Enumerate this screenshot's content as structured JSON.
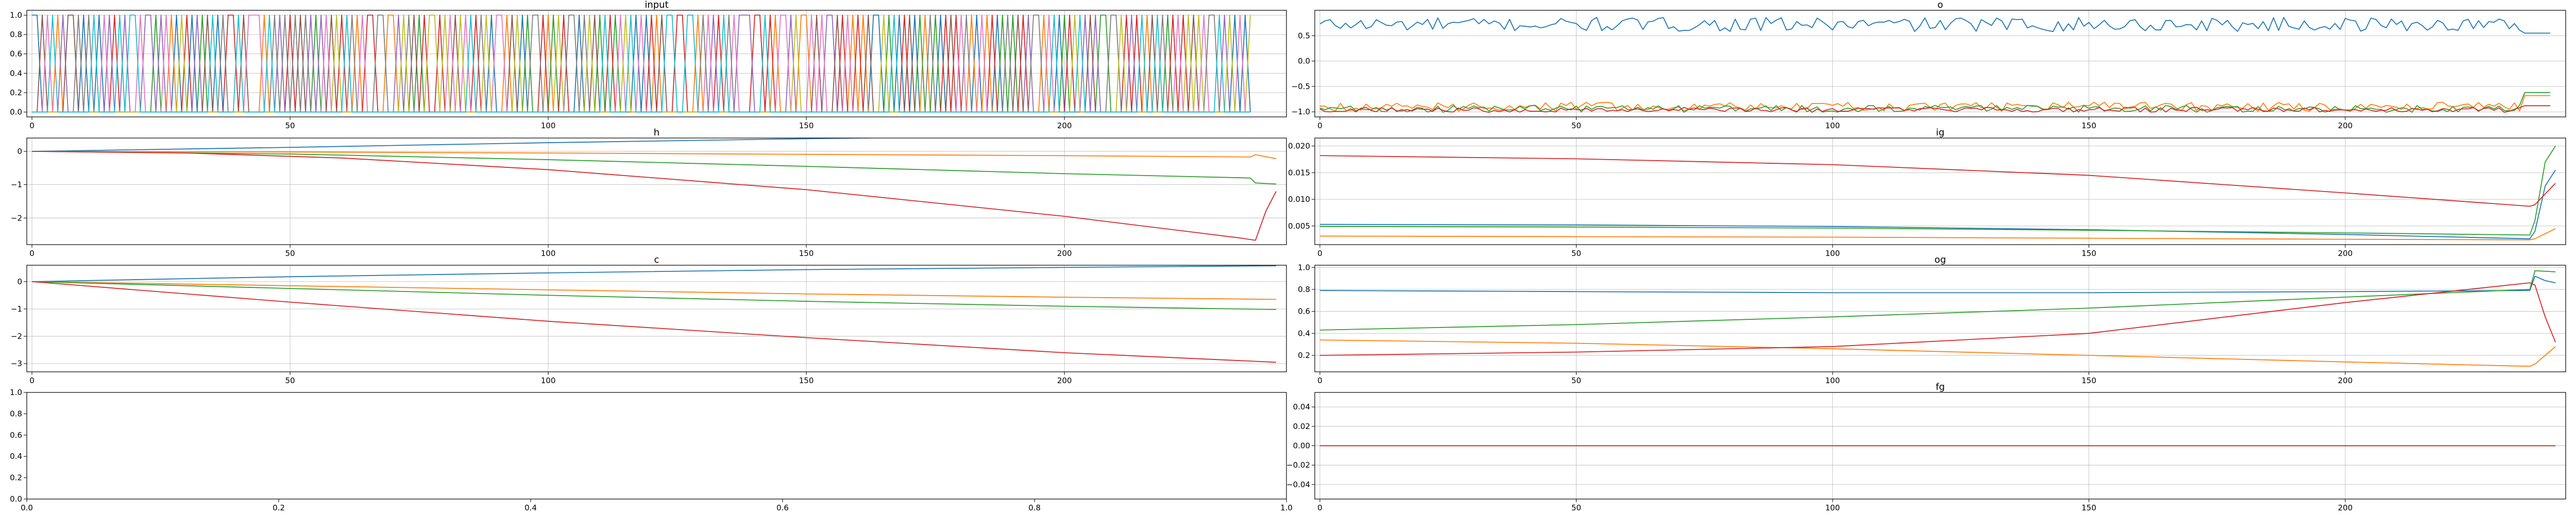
{
  "palette": [
    "#1f77b4",
    "#ff7f0e",
    "#2ca02c",
    "#d62728",
    "#9467bd",
    "#8c564b",
    "#e377c2",
    "#7f7f7f",
    "#bcbd22",
    "#17becf"
  ],
  "chart_data": [
    {
      "id": "input",
      "type": "line",
      "title": "input",
      "xlim": [
        -1,
        243
      ],
      "ylim": [
        -0.05,
        1.05
      ],
      "xticks": [
        0,
        50,
        100,
        150,
        200
      ],
      "yticks": [
        0.0,
        0.2,
        0.4,
        0.6,
        0.8,
        1.0
      ],
      "xtick_labels": [
        "0",
        "50",
        "100",
        "150",
        "200"
      ],
      "ytick_labels": [
        "0.0",
        "0.2",
        "0.4",
        "0.6",
        "0.8",
        "1.0"
      ],
      "grid": true,
      "series_kind": "one_hot",
      "length": 237,
      "num_series": 10,
      "series": []
    },
    {
      "id": "o",
      "type": "line",
      "title": "o",
      "xlim": [
        -1,
        243
      ],
      "ylim": [
        -1.1,
        1.0
      ],
      "xticks": [
        0,
        50,
        100,
        150,
        200
      ],
      "yticks": [
        -1.0,
        -0.5,
        0.0,
        0.5
      ],
      "xtick_labels": [
        "0",
        "50",
        "100",
        "150",
        "200"
      ],
      "ytick_labels": [
        "−1.0",
        "−0.5",
        "0.0",
        "0.5"
      ],
      "grid": true,
      "series_kind": "noisy",
      "series": [
        {
          "color": "#1f77b4",
          "base": 0.72,
          "amp": 0.14,
          "end": 0.55,
          "length": 241
        },
        {
          "color": "#ff7f0e",
          "base": -0.9,
          "amp": 0.09,
          "end": -0.68,
          "length": 241
        },
        {
          "color": "#2ca02c",
          "base": -0.94,
          "amp": 0.07,
          "end": -0.62,
          "length": 241
        },
        {
          "color": "#d62728",
          "base": -0.96,
          "amp": 0.05,
          "end": -0.88,
          "length": 241
        }
      ]
    },
    {
      "id": "h",
      "type": "line",
      "title": "h",
      "xlim": [
        -1,
        243
      ],
      "ylim": [
        -2.8,
        0.4
      ],
      "xticks": [
        0,
        50,
        100,
        150,
        200
      ],
      "yticks": [
        -2,
        -1,
        0
      ],
      "xtick_labels": [
        "0",
        "50",
        "100",
        "150",
        "200"
      ],
      "ytick_labels": [
        "−2",
        "−1",
        "0"
      ],
      "grid": true,
      "series_kind": "points",
      "series": [
        {
          "color": "#1f77b4",
          "points": [
            [
              0,
              0
            ],
            [
              50,
              0.12
            ],
            [
              100,
              0.26
            ],
            [
              150,
              0.38
            ],
            [
              200,
              0.48
            ],
            [
              236,
              0.55
            ],
            [
              237,
              0.57
            ],
            [
              241,
              0.56
            ]
          ]
        },
        {
          "color": "#ff7f0e",
          "points": [
            [
              0,
              0
            ],
            [
              50,
              -0.02
            ],
            [
              100,
              -0.05
            ],
            [
              150,
              -0.09
            ],
            [
              200,
              -0.13
            ],
            [
              236,
              -0.17
            ],
            [
              237,
              -0.1
            ],
            [
              241,
              -0.22
            ]
          ]
        },
        {
          "color": "#2ca02c",
          "points": [
            [
              0,
              0
            ],
            [
              50,
              -0.08
            ],
            [
              100,
              -0.25
            ],
            [
              150,
              -0.45
            ],
            [
              200,
              -0.67
            ],
            [
              236,
              -0.8
            ],
            [
              237,
              -0.95
            ],
            [
              241,
              -0.98
            ]
          ]
        },
        {
          "color": "#d62728",
          "points": [
            [
              0,
              0
            ],
            [
              30,
              -0.05
            ],
            [
              60,
              -0.2
            ],
            [
              100,
              -0.55
            ],
            [
              150,
              -1.15
            ],
            [
              200,
              -1.95
            ],
            [
              234,
              -2.6
            ],
            [
              237,
              -2.67
            ],
            [
              239,
              -1.8
            ],
            [
              241,
              -1.2
            ]
          ]
        }
      ]
    },
    {
      "id": "ig",
      "type": "line",
      "title": "ig",
      "xlim": [
        -1,
        243
      ],
      "ylim": [
        0.0015,
        0.0215
      ],
      "xticks": [
        0,
        50,
        100,
        150,
        200
      ],
      "yticks": [
        0.005,
        0.01,
        0.015,
        0.02
      ],
      "xtick_labels": [
        "0",
        "50",
        "100",
        "150",
        "200"
      ],
      "ytick_labels": [
        "0.005",
        "0.010",
        "0.015",
        "0.020"
      ],
      "grid": true,
      "series_kind": "points",
      "series": [
        {
          "color": "#1f77b4",
          "points": [
            [
              0,
              0.0053
            ],
            [
              50,
              0.0052
            ],
            [
              100,
              0.0049
            ],
            [
              150,
              0.0043
            ],
            [
              200,
              0.0034
            ],
            [
              236,
              0.0026
            ],
            [
              237,
              0.004
            ],
            [
              239,
              0.0125
            ],
            [
              241,
              0.0155
            ]
          ]
        },
        {
          "color": "#ff7f0e",
          "points": [
            [
              0,
              0.0031
            ],
            [
              50,
              0.003
            ],
            [
              100,
              0.0029
            ],
            [
              150,
              0.0027
            ],
            [
              200,
              0.0025
            ],
            [
              236,
              0.0024
            ],
            [
              237,
              0.0026
            ],
            [
              241,
              0.0045
            ]
          ]
        },
        {
          "color": "#2ca02c",
          "points": [
            [
              0,
              0.0049
            ],
            [
              50,
              0.0048
            ],
            [
              100,
              0.0046
            ],
            [
              150,
              0.0042
            ],
            [
              200,
              0.0037
            ],
            [
              236,
              0.0033
            ],
            [
              237,
              0.006
            ],
            [
              239,
              0.017
            ],
            [
              241,
              0.02
            ]
          ]
        },
        {
          "color": "#d62728",
          "points": [
            [
              0,
              0.0182
            ],
            [
              50,
              0.0176
            ],
            [
              100,
              0.0165
            ],
            [
              150,
              0.0145
            ],
            [
              200,
              0.0112
            ],
            [
              236,
              0.0087
            ],
            [
              237,
              0.009
            ],
            [
              239,
              0.011
            ],
            [
              241,
              0.013
            ]
          ]
        }
      ]
    },
    {
      "id": "c",
      "type": "line",
      "title": "c",
      "xlim": [
        -1,
        243
      ],
      "ylim": [
        -3.3,
        0.6
      ],
      "xticks": [
        0,
        50,
        100,
        150,
        200
      ],
      "yticks": [
        -3,
        -2,
        -1,
        0
      ],
      "xtick_labels": [
        "0",
        "50",
        "100",
        "150",
        "200"
      ],
      "ytick_labels": [
        "−3",
        "−2",
        "−1",
        "0"
      ],
      "grid": true,
      "series_kind": "points",
      "series": [
        {
          "color": "#1f77b4",
          "points": [
            [
              0,
              0
            ],
            [
              50,
              0.18
            ],
            [
              100,
              0.32
            ],
            [
              150,
              0.44
            ],
            [
              200,
              0.52
            ],
            [
              241,
              0.58
            ]
          ]
        },
        {
          "color": "#ff7f0e",
          "points": [
            [
              0,
              0
            ],
            [
              50,
              -0.15
            ],
            [
              100,
              -0.3
            ],
            [
              150,
              -0.45
            ],
            [
              200,
              -0.57
            ],
            [
              241,
              -0.65
            ]
          ]
        },
        {
          "color": "#2ca02c",
          "points": [
            [
              0,
              0
            ],
            [
              50,
              -0.25
            ],
            [
              100,
              -0.5
            ],
            [
              150,
              -0.72
            ],
            [
              200,
              -0.9
            ],
            [
              241,
              -1.02
            ]
          ]
        },
        {
          "color": "#d62728",
          "points": [
            [
              0,
              0
            ],
            [
              50,
              -0.75
            ],
            [
              100,
              -1.45
            ],
            [
              150,
              -2.05
            ],
            [
              200,
              -2.6
            ],
            [
              241,
              -2.95
            ]
          ]
        }
      ]
    },
    {
      "id": "og",
      "type": "line",
      "title": "og",
      "xlim": [
        -1,
        243
      ],
      "ylim": [
        0.05,
        1.02
      ],
      "xticks": [
        0,
        50,
        100,
        150,
        200
      ],
      "yticks": [
        0.2,
        0.4,
        0.6,
        0.8,
        1.0
      ],
      "xtick_labels": [
        "0",
        "50",
        "100",
        "150",
        "200"
      ],
      "ytick_labels": [
        "0.2",
        "0.4",
        "0.6",
        "0.8",
        "1.0"
      ],
      "grid": true,
      "series_kind": "points",
      "series": [
        {
          "color": "#1f77b4",
          "points": [
            [
              0,
              0.79
            ],
            [
              50,
              0.78
            ],
            [
              100,
              0.77
            ],
            [
              150,
              0.77
            ],
            [
              200,
              0.78
            ],
            [
              236,
              0.79
            ],
            [
              237,
              0.92
            ],
            [
              239,
              0.88
            ],
            [
              241,
              0.86
            ]
          ]
        },
        {
          "color": "#ff7f0e",
          "points": [
            [
              0,
              0.34
            ],
            [
              50,
              0.31
            ],
            [
              100,
              0.26
            ],
            [
              150,
              0.2
            ],
            [
              200,
              0.14
            ],
            [
              236,
              0.1
            ],
            [
              237,
              0.12
            ],
            [
              239,
              0.2
            ],
            [
              241,
              0.28
            ]
          ]
        },
        {
          "color": "#2ca02c",
          "points": [
            [
              0,
              0.43
            ],
            [
              50,
              0.48
            ],
            [
              100,
              0.55
            ],
            [
              150,
              0.63
            ],
            [
              200,
              0.73
            ],
            [
              236,
              0.8
            ],
            [
              237,
              0.97
            ],
            [
              241,
              0.96
            ]
          ]
        },
        {
          "color": "#d62728",
          "points": [
            [
              0,
              0.2
            ],
            [
              50,
              0.23
            ],
            [
              100,
              0.28
            ],
            [
              150,
              0.4
            ],
            [
              200,
              0.68
            ],
            [
              236,
              0.86
            ],
            [
              237,
              0.84
            ],
            [
              239,
              0.55
            ],
            [
              241,
              0.32
            ]
          ]
        }
      ]
    },
    {
      "id": "empty",
      "type": "line",
      "title": "",
      "xlim": [
        0,
        1
      ],
      "ylim": [
        0,
        1
      ],
      "xticks": [
        0,
        0.2,
        0.4,
        0.6,
        0.8,
        1.0
      ],
      "yticks": [
        0,
        0.2,
        0.4,
        0.6,
        0.8,
        1.0
      ],
      "xtick_labels": [
        "0.0",
        "0.2",
        "0.4",
        "0.6",
        "0.8",
        "1.0"
      ],
      "ytick_labels": [
        "0.0",
        "0.2",
        "0.4",
        "0.6",
        "0.8",
        "1.0"
      ],
      "grid": false,
      "series_kind": "points",
      "series": []
    },
    {
      "id": "fg",
      "type": "line",
      "title": "fg",
      "xlim": [
        -1,
        243
      ],
      "ylim": [
        -0.055,
        0.055
      ],
      "xticks": [
        0,
        50,
        100,
        150,
        200
      ],
      "yticks": [
        -0.04,
        -0.02,
        0.0,
        0.02,
        0.04
      ],
      "xtick_labels": [
        "0",
        "50",
        "100",
        "150",
        "200"
      ],
      "ytick_labels": [
        "−0.04",
        "−0.02",
        "0.00",
        "0.02",
        "0.04"
      ],
      "grid": true,
      "series_kind": "points",
      "series": [
        {
          "color": "#1f77b4",
          "points": [
            [
              0,
              0
            ],
            [
              241,
              0
            ]
          ]
        },
        {
          "color": "#ff7f0e",
          "points": [
            [
              0,
              0
            ],
            [
              241,
              0
            ]
          ]
        },
        {
          "color": "#2ca02c",
          "points": [
            [
              0,
              0
            ],
            [
              241,
              0
            ]
          ]
        },
        {
          "color": "#d62728",
          "points": [
            [
              0,
              0
            ],
            [
              241,
              0
            ]
          ]
        }
      ]
    }
  ]
}
